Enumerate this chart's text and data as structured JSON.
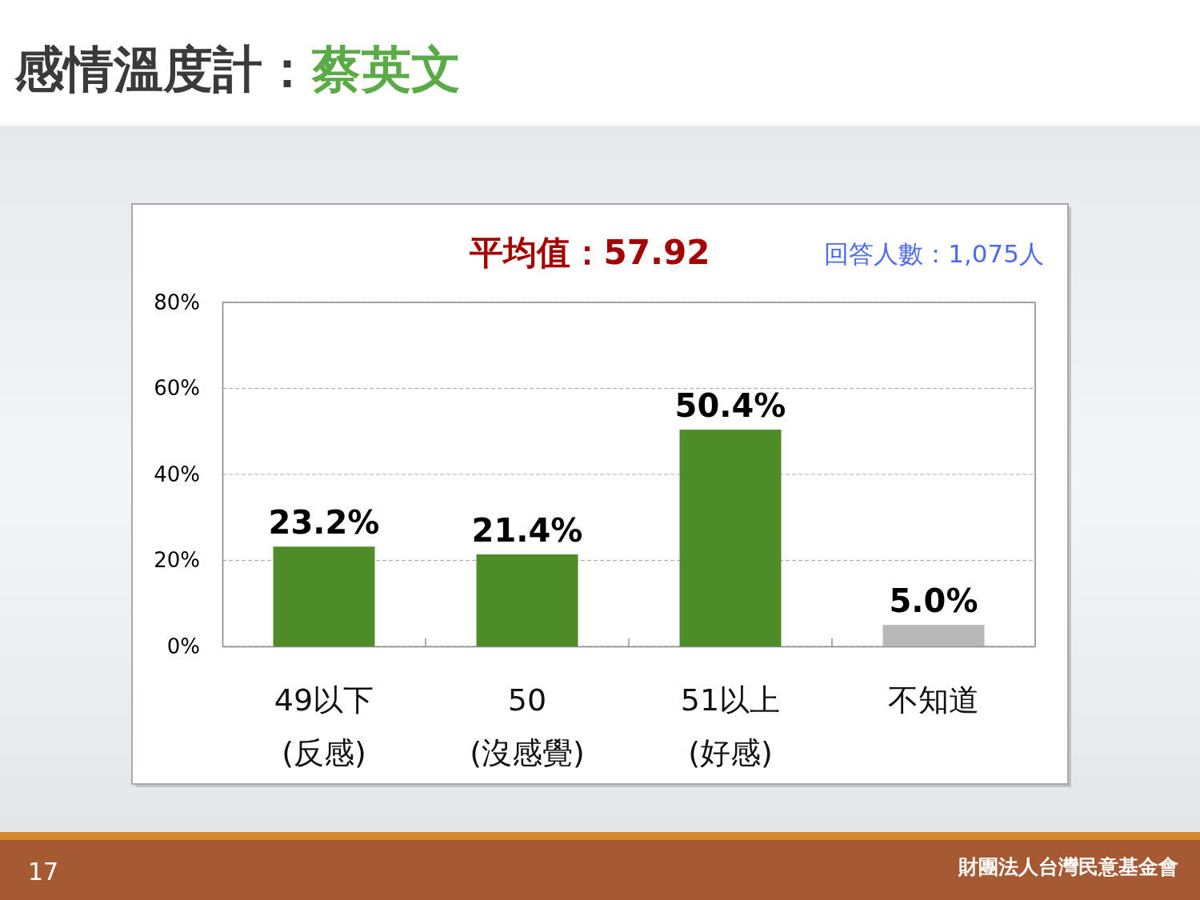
{
  "chart_data": {
    "type": "bar",
    "title": "感情溫度計：蔡英文",
    "categories": [
      "49以下\n(反感)",
      "50\n(沒感覺)",
      "51以上\n(好感)",
      "不知道"
    ],
    "values": [
      23.2,
      21.4,
      50.4,
      5.0
    ],
    "colors": [
      "#4e8c28",
      "#4e8c28",
      "#4e8c28",
      "#b8b8b8"
    ],
    "value_labels": [
      "23.2%",
      "21.4%",
      "50.4%",
      "5.0%"
    ],
    "ylim": [
      0,
      80
    ],
    "yticks": [
      {
        "value": 0,
        "label": "0%"
      },
      {
        "value": 20,
        "label": "20%"
      },
      {
        "value": 40,
        "label": "40%"
      },
      {
        "value": 60,
        "label": "60%"
      },
      {
        "value": 80,
        "label": "80%"
      }
    ],
    "grid": "y",
    "annotations": [
      "平均值：57.92",
      "回答人數：1,075人",
      "17",
      "財團法人台灣民意基金會"
    ]
  }
}
